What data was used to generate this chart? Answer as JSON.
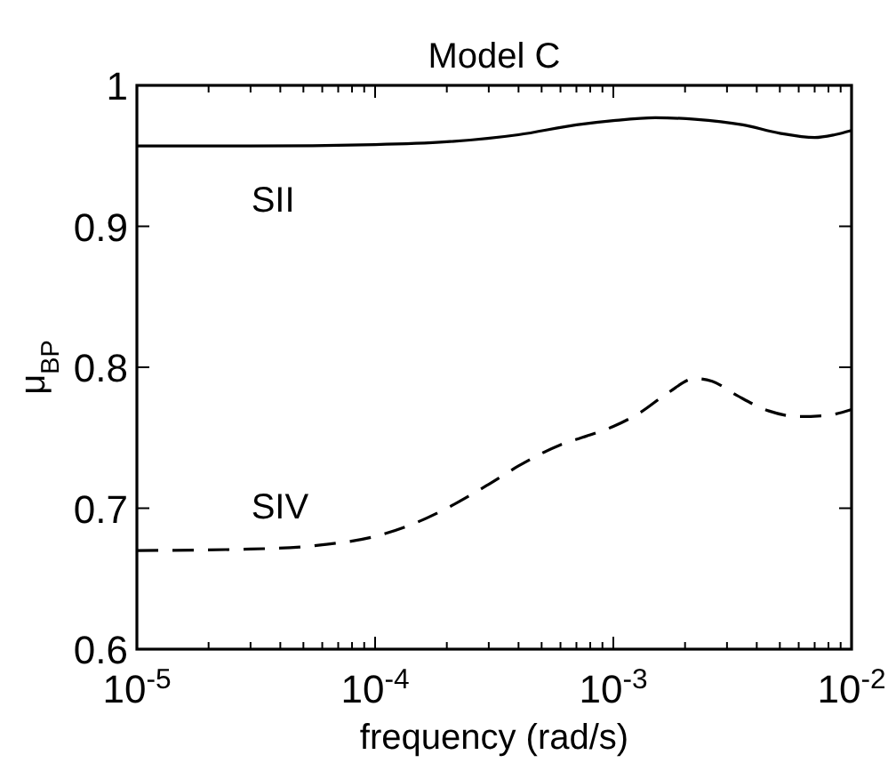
{
  "chart_data": {
    "type": "line",
    "title": "Model C",
    "xlabel": "frequency (rad/s)",
    "ylabel": "μ$_{BP}$",
    "log": "x",
    "xlim": [
      1e-05,
      0.01
    ],
    "ylim": [
      0.6,
      1
    ],
    "xticks": [
      {
        "value": 1e-05,
        "label": "10$^{-5}$"
      },
      {
        "value": 2e-05,
        "label": null
      },
      {
        "value": 3e-05,
        "label": null
      },
      {
        "value": 4e-05,
        "label": null
      },
      {
        "value": 5e-05,
        "label": null
      },
      {
        "value": 6e-05,
        "label": null
      },
      {
        "value": 7e-05,
        "label": null
      },
      {
        "value": 8e-05,
        "label": null
      },
      {
        "value": 9e-05,
        "label": null
      },
      {
        "value": 0.0001,
        "label": "10$^{-4}$"
      },
      {
        "value": 0.0002,
        "label": null
      },
      {
        "value": 0.0003,
        "label": null
      },
      {
        "value": 0.0004,
        "label": null
      },
      {
        "value": 0.0005,
        "label": null
      },
      {
        "value": 0.0006,
        "label": null
      },
      {
        "value": 0.0007,
        "label": null
      },
      {
        "value": 0.0008,
        "label": null
      },
      {
        "value": 0.0009,
        "label": null
      },
      {
        "value": 0.001,
        "label": "10$^{-3}$"
      },
      {
        "value": 0.002,
        "label": null
      },
      {
        "value": 0.003,
        "label": null
      },
      {
        "value": 0.004,
        "label": null
      },
      {
        "value": 0.005,
        "label": null
      },
      {
        "value": 0.006,
        "label": null
      },
      {
        "value": 0.007,
        "label": null
      },
      {
        "value": 0.008,
        "label": null
      },
      {
        "value": 0.009,
        "label": null
      },
      {
        "value": 0.01,
        "label": "10$^{-2}$"
      }
    ],
    "yticks": [
      0.6,
      0.7,
      0.8,
      0.9,
      1
    ],
    "grid": false,
    "series": [
      {
        "name": "SII",
        "color": "#000000",
        "line_style": "solid",
        "x": [
          1e-05,
          3e-05,
          0.0001,
          0.0002,
          0.0004,
          0.0007,
          0.001,
          0.0015,
          0.0022,
          0.0035,
          0.005,
          0.007,
          0.0085,
          0.01
        ],
        "values": [
          0.957,
          0.957,
          0.958,
          0.96,
          0.965,
          0.972,
          0.975,
          0.977,
          0.976,
          0.972,
          0.966,
          0.963,
          0.965,
          0.968
        ]
      },
      {
        "name": "SIV",
        "color": "#000000",
        "line_style": "dashed",
        "x": [
          1e-05,
          3e-05,
          6e-05,
          0.0001,
          0.00015,
          0.0002,
          0.0003,
          0.0004,
          0.0006,
          0.0008,
          0.001,
          0.0013,
          0.0017,
          0.0022,
          0.0026,
          0.0033,
          0.0045,
          0.006,
          0.008,
          0.01
        ],
        "values": [
          0.67,
          0.671,
          0.674,
          0.68,
          0.69,
          0.7,
          0.717,
          0.73,
          0.745,
          0.752,
          0.758,
          0.768,
          0.782,
          0.792,
          0.79,
          0.78,
          0.769,
          0.765,
          0.766,
          0.77
        ]
      }
    ]
  }
}
